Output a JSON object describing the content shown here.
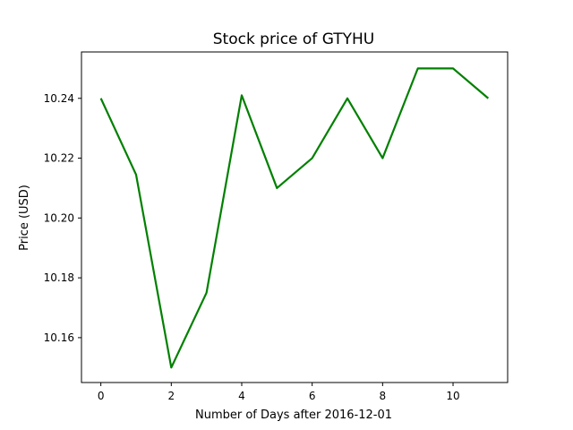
{
  "chart_data": {
    "type": "line",
    "title": "Stock price of GTYHU",
    "xlabel": "Number of Days after 2016-12-01",
    "ylabel": "Price (USD)",
    "xlim": [
      -0.55,
      11.55
    ],
    "ylim": [
      10.145,
      10.2555
    ],
    "xticks": [
      0,
      2,
      4,
      6,
      8,
      10
    ],
    "yticks": [
      10.16,
      10.18,
      10.2,
      10.22,
      10.24
    ],
    "grid": false,
    "legend": "none",
    "series": [
      {
        "color": "#008000",
        "x": [
          0,
          1,
          2,
          3,
          4,
          5,
          6,
          7,
          8,
          9,
          10,
          11
        ],
        "values": [
          10.24,
          10.2145,
          10.15,
          10.175,
          10.241,
          10.21,
          10.22,
          10.24,
          10.22,
          10.25,
          10.25,
          10.24
        ]
      }
    ]
  }
}
